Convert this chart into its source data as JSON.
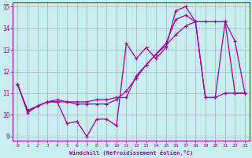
{
  "xlabel": "Windchill (Refroidissement éolien,°C)",
  "ylabel": "",
  "bg_color": "#c8eef0",
  "line_color": "#990099",
  "grid_color": "#aaaacc",
  "xlim": [
    -0.5,
    23.5
  ],
  "ylim": [
    8.8,
    15.2
  ],
  "xticks": [
    0,
    1,
    2,
    3,
    4,
    5,
    6,
    7,
    8,
    9,
    10,
    11,
    12,
    13,
    14,
    15,
    16,
    17,
    18,
    19,
    20,
    21,
    22,
    23
  ],
  "yticks": [
    9,
    10,
    11,
    12,
    13,
    14,
    15
  ],
  "series1_x": [
    0,
    1,
    2,
    3,
    4,
    5,
    6,
    7,
    8,
    9,
    10,
    11,
    12,
    13,
    14,
    15,
    16,
    17,
    18,
    19,
    20,
    21,
    22,
    23
  ],
  "series1_y": [
    11.4,
    10.1,
    10.4,
    10.6,
    10.6,
    9.6,
    9.7,
    9.0,
    9.8,
    9.8,
    9.5,
    13.3,
    12.6,
    13.1,
    12.6,
    13.1,
    14.8,
    15.0,
    14.3,
    10.8,
    10.8,
    14.3,
    13.4,
    11.0
  ],
  "series2_x": [
    0,
    1,
    2,
    3,
    4,
    5,
    6,
    7,
    8,
    9,
    10,
    11,
    12,
    13,
    14,
    15,
    16,
    17,
    18,
    19,
    20,
    21,
    22,
    23
  ],
  "series2_y": [
    11.4,
    10.2,
    10.4,
    10.6,
    10.6,
    10.6,
    10.5,
    10.5,
    10.5,
    10.5,
    10.7,
    11.1,
    11.7,
    12.3,
    12.8,
    13.2,
    13.7,
    14.1,
    14.3,
    14.3,
    14.3,
    14.3,
    11.0,
    11.0
  ],
  "series3_x": [
    0,
    1,
    2,
    3,
    4,
    5,
    6,
    7,
    8,
    9,
    10,
    11,
    12,
    13,
    14,
    15,
    16,
    17,
    18,
    19,
    20,
    21,
    22,
    23
  ],
  "series3_y": [
    11.4,
    10.2,
    10.4,
    10.6,
    10.7,
    10.6,
    10.6,
    10.6,
    10.7,
    10.7,
    10.8,
    10.8,
    11.8,
    12.3,
    12.8,
    13.3,
    14.4,
    14.6,
    14.3,
    10.8,
    10.8,
    11.0,
    11.0,
    11.0
  ]
}
